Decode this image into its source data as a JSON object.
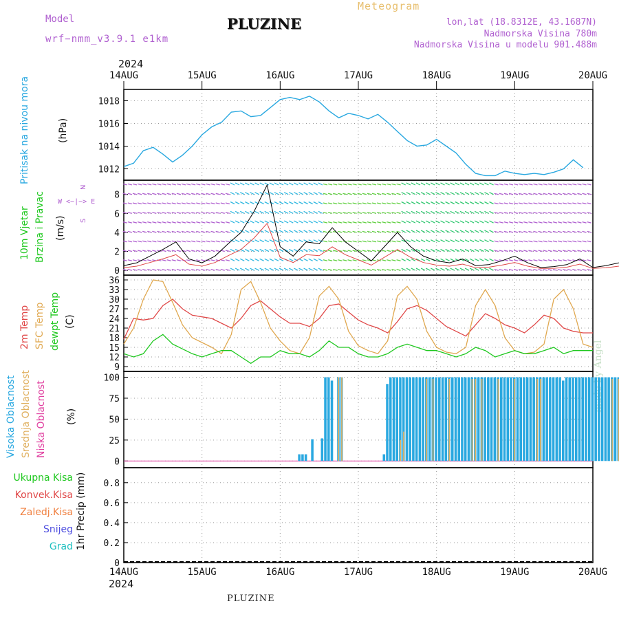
{
  "header": {
    "model_label": "Model",
    "model_name": "wrf−nmm_v3.9.1 e1km",
    "station": "PLUZINE",
    "chart_kind": "Meteogram",
    "lonlat": "lon,lat (18.8312E, 43.1687N)",
    "elevation": "Nadmorska Visina 780m",
    "model_elevation": "Nadmorska Visina u modelu 901.488m"
  },
  "footer": {
    "station": "PLUZINE",
    "watermark": "made by Angel"
  },
  "time_axis": {
    "year": "2024",
    "ticks": [
      "14AUG",
      "15AUG",
      "16AUG",
      "17AUG",
      "18AUG",
      "19AUG",
      "20AUG"
    ]
  },
  "labels": {
    "pressure": "Pritisak na nivou mora",
    "pressure_unit": "(hPa)",
    "wind_a": "10m Vjetar",
    "wind_b": "Brzina i Pravac",
    "wind_unit": "(m/s)",
    "compass": "W <−|−> E",
    "compass_n": "N",
    "compass_s": "S",
    "temp_a": "2m Temp",
    "temp_b": "SFC Temp",
    "temp_c": "dewpt Temp",
    "temp_unit": "(C)",
    "cloud_a": "Visoka Oblacnost",
    "cloud_b": "Srednja Oblacnost",
    "cloud_c": "Niska Oblacnost",
    "cloud_unit": "(%)",
    "precip_unit": "1hr Precip (mm)",
    "precip_legend": [
      "Ukupna Kisa",
      "Konvek.Kisa",
      "Zaledj.Kisa",
      "Snijeg",
      "Grad"
    ]
  },
  "colors": {
    "pressure": "#29a8e0",
    "t2m": "#e04848",
    "sfc": "#e0a850",
    "dew": "#20c820",
    "cloud_high": "#29a8e0",
    "cloud_mid": "#e0b060",
    "cloud_low": "#e040a0",
    "rain": "#20c820",
    "conv": "#e04848",
    "frz": "#f08040",
    "snow": "#5050e0",
    "hail": "#20c0c0",
    "purple": "#b060d0",
    "precip_bar": "#6a9a30"
  },
  "chart_data": [
    {
      "type": "line",
      "id": "pressure",
      "ylabel": "(hPa)",
      "ylim": [
        1011,
        1019
      ],
      "yticks": [
        "1012",
        "1014",
        "1016",
        "1018"
      ],
      "series": [
        {
          "name": "Pritisak na nivou mora",
          "values": [
            1012.2,
            1012.5,
            1013.6,
            1013.9,
            1013.3,
            1012.6,
            1013.2,
            1014.0,
            1015.0,
            1015.7,
            1016.1,
            1017.0,
            1017.1,
            1016.6,
            1016.7,
            1017.4,
            1018.1,
            1018.3,
            1018.1,
            1018.4,
            1017.9,
            1017.1,
            1016.5,
            1016.9,
            1016.7,
            1016.4,
            1016.8,
            1016.1,
            1015.3,
            1014.5,
            1014.0,
            1014.1,
            1014.6,
            1014.0,
            1013.4,
            1012.4,
            1011.6,
            1011.4,
            1011.4,
            1011.8,
            1011.6,
            1011.5,
            1011.6,
            1011.5,
            1011.7,
            1012.0,
            1012.8,
            1012.1
          ]
        }
      ],
      "x_hours_step": 3
    },
    {
      "type": "line",
      "id": "wind",
      "ylabel": "(m/s)",
      "ylim": [
        -0.5,
        9.5
      ],
      "yticks": [
        "0",
        "2",
        "4",
        "6",
        "8"
      ],
      "series": [
        {
          "name": "10m Vjetar",
          "values": [
            0.5,
            0.8,
            1.5,
            2.2,
            3.0,
            1.2,
            0.8,
            1.5,
            2.8,
            4.0,
            6.2,
            9.0,
            2.5,
            1.5,
            3.0,
            2.8,
            4.5,
            3.0,
            2.0,
            1.0,
            2.5,
            4.0,
            2.5,
            1.5,
            1.0,
            0.8,
            1.2,
            0.5,
            0.6,
            1.0,
            1.5,
            0.8,
            0.3,
            0.4,
            0.6,
            1.2,
            0.3,
            0.5,
            0.8
          ]
        }
      ],
      "x_hours_step": 4,
      "arrow_rows": [
        0,
        1,
        2,
        3,
        4,
        5,
        6,
        7,
        8,
        9
      ]
    },
    {
      "type": "line",
      "id": "temperature",
      "ylabel": "(C)",
      "ylim": [
        7.5,
        37.5
      ],
      "yticks": [
        "9",
        "12",
        "15",
        "18",
        "21",
        "24",
        "27",
        "30",
        "33",
        "36"
      ],
      "series": [
        {
          "name": "2m Temp",
          "values": [
            17.5,
            24,
            23.5,
            24,
            28,
            30,
            27,
            25,
            24.5,
            24,
            22.5,
            21,
            24,
            28,
            29.5,
            27,
            24.5,
            22.5,
            22.5,
            21.5,
            24,
            28,
            28.5,
            26,
            23.5,
            22,
            21,
            19.5,
            23,
            27,
            28,
            26.5,
            24,
            21.5,
            20,
            18.5,
            22,
            25.5,
            24,
            22,
            21,
            19.5,
            22,
            25,
            24,
            21,
            20,
            19.5,
            19.5
          ]
        },
        {
          "name": "SFC Temp",
          "values": [
            16,
            21,
            30,
            36,
            35.5,
            29,
            22,
            18,
            16.5,
            15,
            13,
            19,
            33,
            35.5,
            29,
            21,
            17,
            14,
            13,
            18,
            31,
            34,
            30,
            20,
            15.5,
            14,
            13,
            17,
            31,
            34,
            30,
            20,
            15,
            13.5,
            13,
            15,
            28,
            33,
            28,
            18,
            14,
            13,
            13.5,
            16,
            30,
            33,
            27,
            16,
            15
          ]
        },
        {
          "name": "dewpt Temp",
          "values": [
            13,
            12,
            13,
            17,
            19,
            16,
            14.5,
            13,
            12,
            13,
            14,
            14,
            12,
            10,
            12,
            12,
            14,
            13,
            13,
            12,
            14,
            17,
            15,
            15,
            13,
            12,
            12,
            13,
            15,
            16,
            15,
            14,
            14,
            13,
            12,
            13,
            15,
            14,
            12,
            13,
            14,
            13,
            13,
            14,
            15,
            13,
            14,
            14,
            14
          ]
        }
      ],
      "x_hours_step": 3
    },
    {
      "type": "bar",
      "id": "cloud",
      "ylabel": "(%)",
      "ylim": [
        -8,
        107
      ],
      "yticks": [
        "0",
        "25",
        "50",
        "75",
        "100"
      ],
      "series": [
        {
          "name": "Visoka Oblacnost",
          "points": [
            [
              54,
              8
            ],
            [
              55,
              8
            ],
            [
              56,
              8
            ],
            [
              58,
              26
            ],
            [
              61,
              27
            ],
            [
              62,
              100
            ],
            [
              63,
              100
            ],
            [
              64,
              96
            ],
            [
              66,
              100
            ],
            [
              67,
              100
            ],
            [
              80,
              8
            ],
            [
              81,
              92
            ],
            [
              82,
              100
            ],
            [
              83,
              100
            ],
            [
              84,
              100
            ],
            [
              85,
              100
            ],
            [
              86,
              100
            ],
            [
              87,
              100
            ],
            [
              88,
              100
            ],
            [
              89,
              100
            ],
            [
              90,
              100
            ],
            [
              91,
              100
            ],
            [
              92,
              100
            ],
            [
              93,
              100
            ],
            [
              94,
              100
            ],
            [
              95,
              100
            ],
            [
              96,
              100
            ],
            [
              97,
              100
            ],
            [
              98,
              100
            ],
            [
              99,
              100
            ],
            [
              100,
              100
            ],
            [
              101,
              100
            ],
            [
              102,
              100
            ],
            [
              103,
              100
            ],
            [
              104,
              100
            ],
            [
              105,
              100
            ],
            [
              106,
              100
            ],
            [
              107,
              100
            ],
            [
              108,
              100
            ],
            [
              109,
              100
            ],
            [
              110,
              100
            ],
            [
              111,
              100
            ],
            [
              112,
              100
            ],
            [
              113,
              100
            ],
            [
              114,
              100
            ],
            [
              115,
              100
            ],
            [
              116,
              100
            ],
            [
              117,
              100
            ],
            [
              118,
              100
            ],
            [
              119,
              100
            ],
            [
              120,
              100
            ],
            [
              121,
              100
            ],
            [
              122,
              100
            ],
            [
              123,
              100
            ],
            [
              124,
              100
            ],
            [
              125,
              100
            ],
            [
              126,
              100
            ],
            [
              127,
              100
            ],
            [
              128,
              100
            ],
            [
              129,
              100
            ],
            [
              130,
              100
            ],
            [
              131,
              100
            ],
            [
              132,
              100
            ],
            [
              133,
              100
            ],
            [
              134,
              100
            ],
            [
              135,
              96
            ],
            [
              136,
              100
            ],
            [
              137,
              100
            ],
            [
              138,
              100
            ],
            [
              139,
              100
            ],
            [
              140,
              100
            ],
            [
              141,
              100
            ],
            [
              142,
              100
            ],
            [
              143,
              100
            ],
            [
              144,
              100
            ],
            [
              145,
              100
            ],
            [
              146,
              100
            ],
            [
              147,
              100
            ],
            [
              148,
              100
            ],
            [
              149,
              100
            ],
            [
              150,
              100
            ],
            [
              151,
              100
            ],
            [
              152,
              100
            ],
            [
              153,
              100
            ],
            [
              154,
              100
            ],
            [
              155,
              100
            ],
            [
              156,
              100
            ],
            [
              157,
              100
            ],
            [
              158,
              100
            ],
            [
              159,
              100
            ],
            [
              160,
              100
            ],
            [
              161,
              100
            ],
            [
              162,
              100
            ],
            [
              163,
              100
            ],
            [
              164,
              100
            ],
            [
              165,
              100
            ],
            [
              166,
              100
            ],
            [
              167,
              100
            ],
            [
              168,
              100
            ]
          ]
        },
        {
          "name": "Srednja Oblacnost",
          "points": [
            [
              66,
              100
            ],
            [
              67,
              100
            ],
            [
              85,
              25
            ],
            [
              86,
              35
            ],
            [
              93,
              98
            ],
            [
              95,
              98
            ],
            [
              100,
              98
            ],
            [
              107,
              98
            ],
            [
              108,
              98
            ],
            [
              110,
              98
            ],
            [
              115,
              98
            ],
            [
              120,
              98
            ],
            [
              127,
              98
            ],
            [
              128,
              98
            ],
            [
              150,
              98
            ],
            [
              152,
              98
            ],
            [
              160,
              98
            ],
            [
              165,
              98
            ]
          ]
        },
        {
          "name": "Niska Oblacnost",
          "points": []
        }
      ]
    },
    {
      "type": "bar",
      "id": "precip",
      "ylabel": "1hr Precip (mm)",
      "ylim": [
        0,
        0.95
      ],
      "yticks": [
        "0",
        "0.2",
        "0.4",
        "0.6",
        "0.8"
      ],
      "series": [
        {
          "name": "Ukupna Kisa",
          "points": [
            [
              158,
              0.08
            ]
          ]
        }
      ]
    }
  ]
}
